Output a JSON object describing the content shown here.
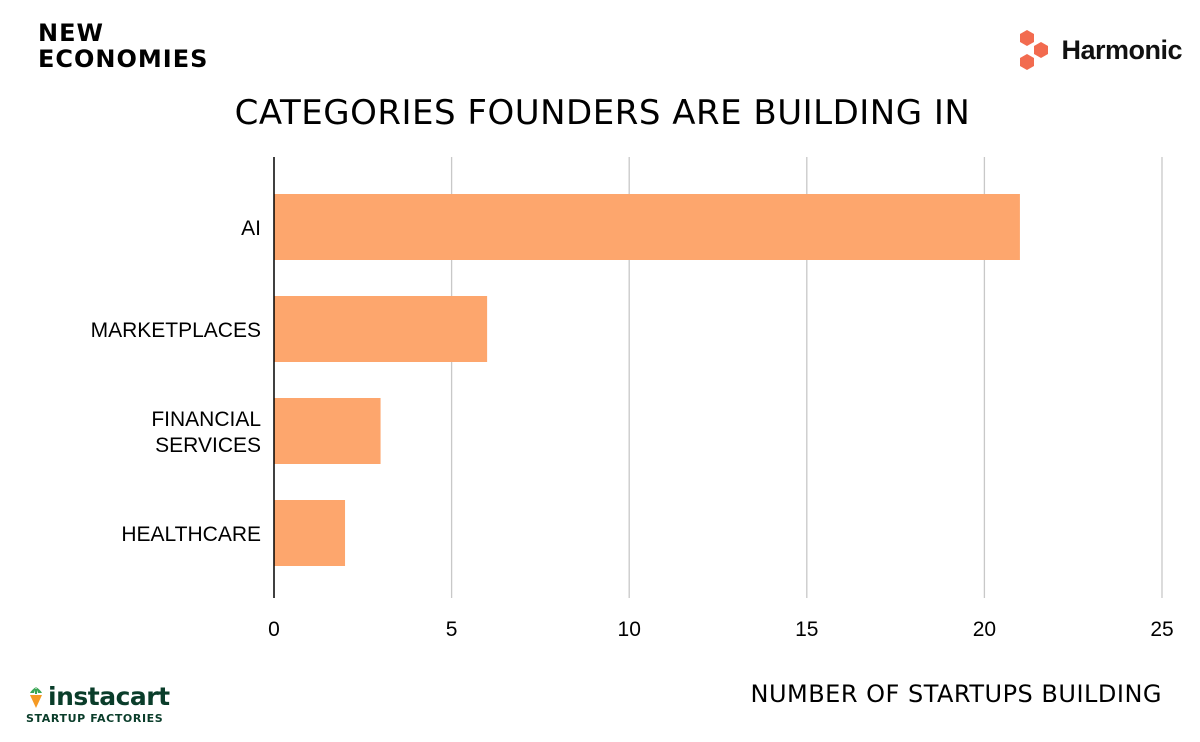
{
  "header": {
    "brand_line1": "NEW",
    "brand_line2": "ECONOMIES",
    "partner_name": "Harmonic",
    "partner_icon": "hexagon-cluster-icon"
  },
  "footer": {
    "brand_name": "instacart",
    "brand_sub": "STARTUP FACTORIES",
    "brand_icon": "carrot-icon"
  },
  "colors": {
    "bar": "#fda66d",
    "axis": "#000000",
    "grid": "#c8c8c8",
    "harmonic_accent": "#f26b4f",
    "instacart_green": "#0a3d2a",
    "instacart_orange": "#f59a23"
  },
  "chart_data": {
    "type": "bar",
    "orientation": "horizontal",
    "title": "CATEGORIES FOUNDERS ARE BUILDING IN",
    "xlabel": "NUMBER OF STARTUPS BUILDING",
    "ylabel": "",
    "categories": [
      "AI",
      "MARKETPLACES",
      "FINANCIAL SERVICES",
      "HEALTHCARE"
    ],
    "values": [
      21,
      6,
      3,
      2
    ],
    "xlim": [
      0,
      25
    ],
    "xticks": [
      0,
      5,
      10,
      15,
      20,
      25
    ],
    "grid": "vertical",
    "legend": "none"
  }
}
